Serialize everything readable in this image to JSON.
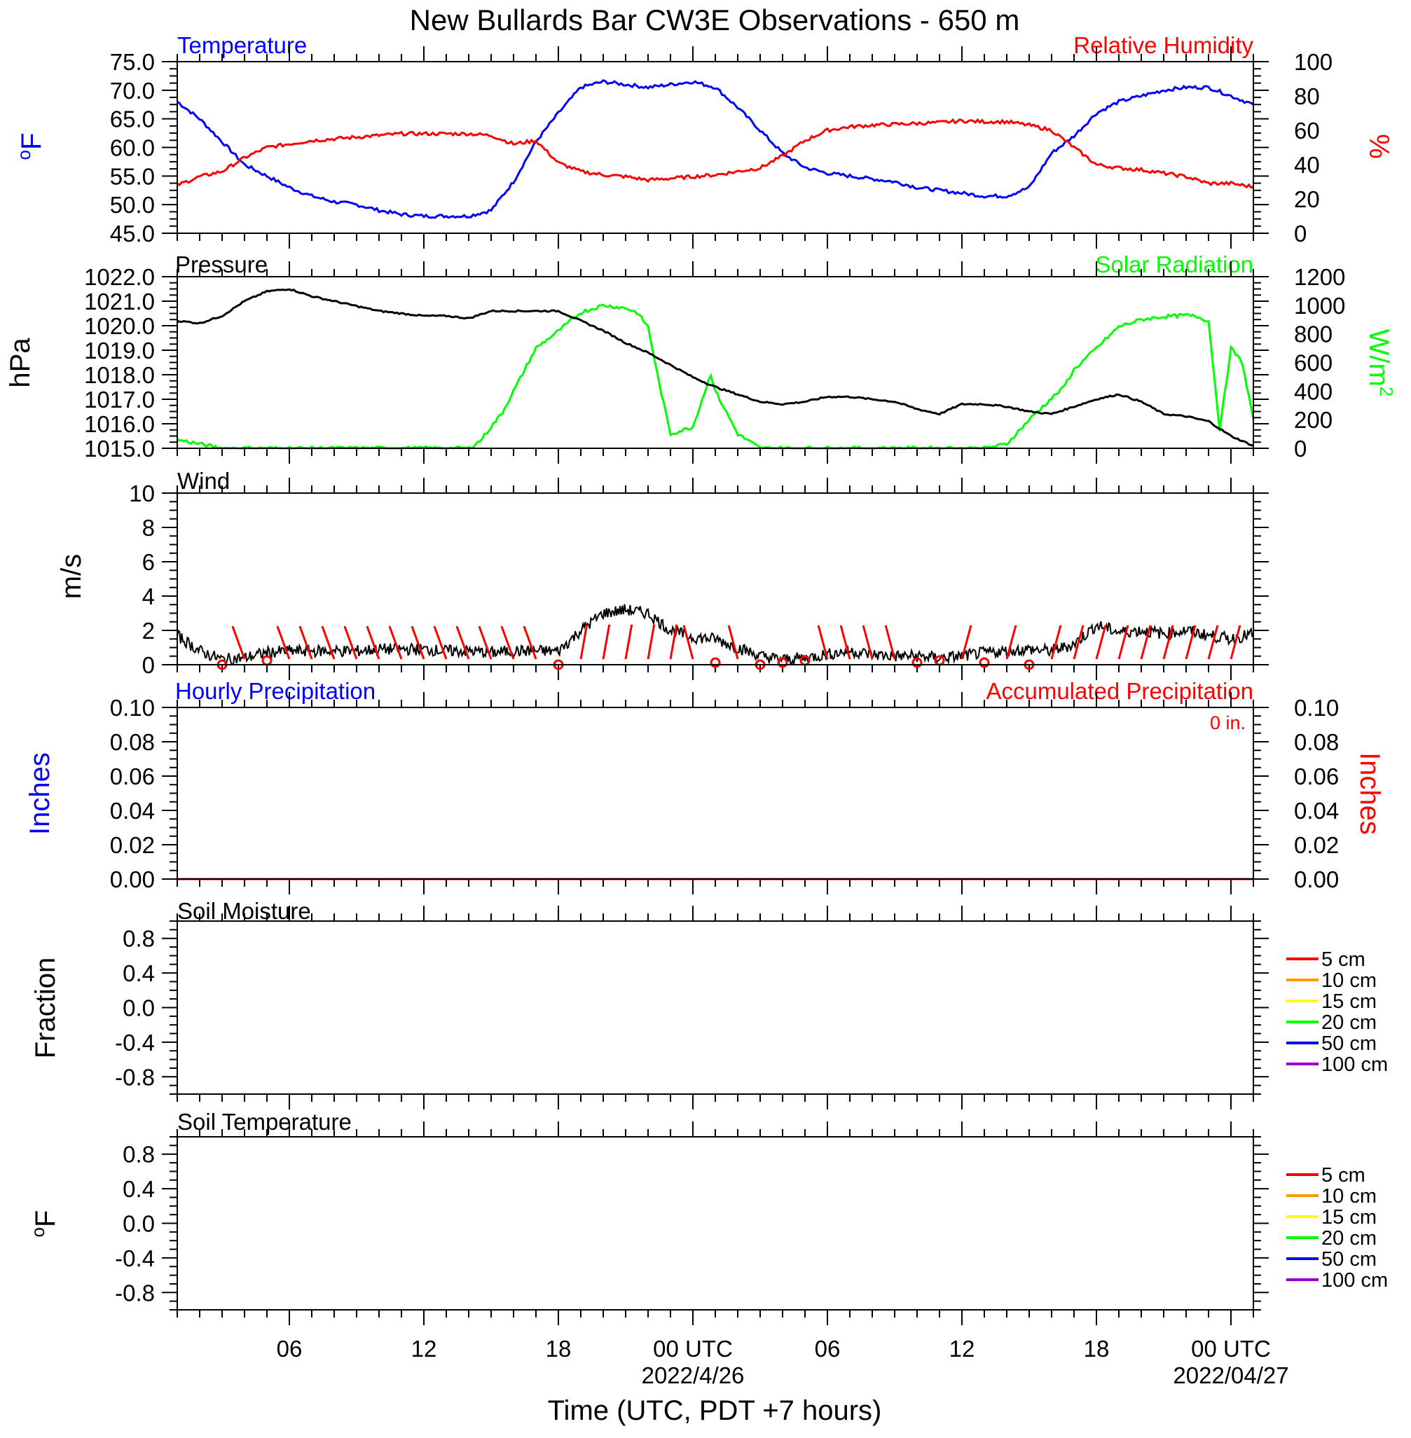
{
  "title": "New Bullards Bar CW3E Observations - 650 m",
  "xlabel": "Time (UTC, PDT +7 hours)",
  "x_ticks": [
    {
      "label": "06",
      "hour": 6,
      "date": ""
    },
    {
      "label": "12",
      "hour": 12,
      "date": ""
    },
    {
      "label": "18",
      "hour": 18,
      "date": ""
    },
    {
      "label": "00 UTC",
      "hour": 24,
      "date": "2022/4/26"
    },
    {
      "label": "06",
      "hour": 30,
      "date": ""
    },
    {
      "label": "12",
      "hour": 36,
      "date": ""
    },
    {
      "label": "18",
      "hour": 42,
      "date": ""
    },
    {
      "label": "00 UTC",
      "hour": 48,
      "date": "2022/04/27"
    }
  ],
  "x_range_hours": [
    1,
    49
  ],
  "colors": {
    "temperature": "#0000ff",
    "humidity": "#ff0000",
    "pressure": "#000000",
    "solar": "#00ff00",
    "wind": "#000000",
    "barb": "#ff0000",
    "hourly": "#0000ff",
    "accum": "#ff0000"
  },
  "panels": {
    "temp_rh": {
      "left_title": "Temperature",
      "right_title": "Relative Humidity",
      "left_unit": "oF",
      "right_unit": "%",
      "left_ticks": [
        "75.0",
        "70.0",
        "65.0",
        "60.0",
        "55.0",
        "50.0",
        "45.0"
      ],
      "right_ticks": [
        "100",
        "80",
        "60",
        "40",
        "20",
        "0"
      ]
    },
    "pres_solar": {
      "left_title": "Pressure",
      "right_title": "Solar Radiation",
      "left_unit": "hPa",
      "right_unit": "W/m2",
      "right_unit_sup": "2",
      "left_ticks": [
        "1022.0",
        "1021.0",
        "1020.0",
        "1019.0",
        "1018.0",
        "1017.0",
        "1016.0",
        "1015.0"
      ],
      "right_ticks": [
        "1200",
        "1000",
        "800",
        "600",
        "400",
        "200",
        "0"
      ]
    },
    "wind": {
      "left_title": "Wind",
      "left_unit": "m/s",
      "left_ticks": [
        "10",
        "8",
        "6",
        "4",
        "2",
        "0"
      ]
    },
    "precip": {
      "left_title": "Hourly Precipitation",
      "right_title": "Accumulated Precipitation",
      "accum_note": "0 in.",
      "left_unit": "Inches",
      "right_unit": "Inches",
      "left_ticks": [
        "0.10",
        "0.08",
        "0.06",
        "0.04",
        "0.02",
        "0.00"
      ],
      "right_ticks": [
        "0.10",
        "0.08",
        "0.06",
        "0.04",
        "0.02",
        "0.00"
      ]
    },
    "soil_moist": {
      "left_title": "Soil Moisture",
      "left_unit": "Fraction",
      "left_ticks": [
        "0.8",
        "0.4",
        "0.0",
        "-0.4",
        "-0.8"
      ]
    },
    "soil_temp": {
      "left_title": "Soil Temperature",
      "left_unit": "oF",
      "left_ticks": [
        "0.8",
        "0.4",
        "0.0",
        "-0.4",
        "-0.8"
      ]
    }
  },
  "legend": [
    {
      "label": "5 cm",
      "color": "#ff0000"
    },
    {
      "label": "10 cm",
      "color": "#ff9900"
    },
    {
      "label": "15 cm",
      "color": "#ffff00"
    },
    {
      "label": "20 cm",
      "color": "#00ff00"
    },
    {
      "label": "50 cm",
      "color": "#0000ff"
    },
    {
      "label": "100 cm",
      "color": "#9900cc"
    }
  ],
  "chart_data": [
    {
      "type": "line",
      "title": "Temperature",
      "ylabel": "oF",
      "ylim": [
        45,
        75
      ],
      "x_unit": "hour UTC from 2022/4/25 00 UTC",
      "x": [
        1,
        2,
        3,
        4,
        5,
        6,
        7,
        8,
        9,
        10,
        11,
        12,
        13,
        14,
        15,
        16,
        17,
        18,
        19,
        20,
        21,
        22,
        23,
        24,
        25,
        26,
        27,
        28,
        29,
        30,
        31,
        32,
        33,
        34,
        35,
        36,
        37,
        38,
        39,
        40,
        41,
        42,
        43,
        44,
        45,
        46,
        47,
        48,
        49
      ],
      "y": [
        68,
        65,
        61,
        57,
        55,
        53,
        51.5,
        50.5,
        50,
        49,
        48.3,
        48,
        48,
        48,
        49,
        54,
        61,
        66,
        70.5,
        71.5,
        71,
        70.5,
        71,
        71.5,
        70.5,
        67,
        63,
        59,
        56.5,
        55.5,
        55,
        54.5,
        54,
        53,
        52.5,
        52,
        51.5,
        51.5,
        53,
        59,
        62,
        66,
        68,
        69,
        70,
        70.5,
        70.5,
        69,
        67.5
      ]
    },
    {
      "type": "line",
      "title": "Relative Humidity",
      "ylabel": "%",
      "ylim": [
        0,
        100
      ],
      "x": [
        1,
        2,
        3,
        4,
        5,
        6,
        7,
        8,
        9,
        10,
        11,
        12,
        13,
        14,
        15,
        16,
        17,
        18,
        19,
        20,
        21,
        22,
        23,
        24,
        25,
        26,
        27,
        28,
        29,
        30,
        31,
        32,
        33,
        34,
        35,
        36,
        37,
        38,
        39,
        40,
        41,
        42,
        43,
        44,
        45,
        46,
        47,
        48,
        49
      ],
      "y": [
        28,
        33,
        36,
        44,
        50,
        52,
        54,
        55,
        56,
        57,
        58,
        58,
        58,
        58,
        57,
        52,
        54,
        41,
        36,
        34,
        33,
        31,
        32,
        33,
        34,
        36,
        38,
        45,
        54,
        60,
        62,
        63,
        63.5,
        64,
        64.5,
        65.5,
        65,
        65,
        63,
        60,
        50,
        40,
        38,
        37,
        35,
        33,
        29,
        29,
        27
      ]
    },
    {
      "type": "line",
      "title": "Pressure",
      "ylabel": "hPa",
      "ylim": [
        1015,
        1022
      ],
      "x": [
        1,
        2,
        3,
        4,
        5,
        6,
        7,
        8,
        9,
        10,
        11,
        12,
        13,
        14,
        15,
        16,
        17,
        18,
        19,
        20,
        21,
        22,
        23,
        24,
        25,
        26,
        27,
        28,
        29,
        30,
        31,
        32,
        33,
        34,
        35,
        36,
        37,
        38,
        39,
        40,
        41,
        42,
        43,
        44,
        45,
        46,
        47,
        48,
        49
      ],
      "y": [
        1020.2,
        1020.1,
        1020.4,
        1021,
        1021.4,
        1021.5,
        1021.2,
        1021,
        1020.8,
        1020.6,
        1020.5,
        1020.4,
        1020.4,
        1020.3,
        1020.6,
        1020.6,
        1020.6,
        1020.6,
        1020.2,
        1019.8,
        1019.3,
        1018.9,
        1018.4,
        1017.9,
        1017.5,
        1017.2,
        1016.9,
        1016.8,
        1016.9,
        1017.1,
        1017.1,
        1017,
        1016.9,
        1016.6,
        1016.4,
        1016.8,
        1016.8,
        1016.7,
        1016.5,
        1016.4,
        1016.7,
        1017,
        1017.2,
        1016.9,
        1016.4,
        1016.3,
        1016.1,
        1015.5,
        1015.1
      ]
    },
    {
      "type": "line",
      "title": "Solar Radiation",
      "ylabel": "W/m2",
      "ylim": [
        0,
        1200
      ],
      "x": [
        1,
        2,
        3,
        4,
        5,
        6,
        7,
        8,
        9,
        10,
        11,
        12,
        13,
        14,
        14.5,
        15,
        15.5,
        16,
        17,
        18,
        19,
        20,
        21,
        21.5,
        22,
        22.5,
        23,
        24,
        24.8,
        25,
        26,
        27,
        28,
        29,
        30,
        31,
        32,
        33,
        34,
        35,
        36,
        37,
        38,
        39,
        40,
        40.5,
        41,
        42,
        43,
        44,
        45,
        46,
        46.5,
        47,
        47.5,
        48,
        48.5,
        49
      ],
      "y": [
        60,
        30,
        0,
        0,
        0,
        0,
        0,
        0,
        0,
        0,
        0,
        0,
        0,
        0,
        50,
        150,
        250,
        400,
        700,
        820,
        950,
        1000,
        980,
        950,
        850,
        450,
        100,
        150,
        520,
        400,
        100,
        0,
        0,
        0,
        0,
        0,
        0,
        0,
        0,
        0,
        0,
        0,
        30,
        200,
        350,
        420,
        550,
        700,
        850,
        900,
        920,
        930,
        920,
        890,
        130,
        700,
        600,
        200
      ]
    },
    {
      "type": "line",
      "title": "Wind",
      "ylabel": "m/s",
      "ylim": [
        0,
        10
      ],
      "x": [
        1,
        2,
        3,
        4,
        5,
        6,
        7,
        8,
        9,
        10,
        11,
        12,
        13,
        14,
        15,
        16,
        17,
        18,
        19,
        20,
        21,
        22,
        23,
        24,
        25,
        26,
        27,
        28,
        29,
        30,
        31,
        32,
        33,
        34,
        35,
        36,
        37,
        38,
        39,
        40,
        41,
        42,
        43,
        44,
        45,
        46,
        47,
        48,
        49
      ],
      "y": [
        1.7,
        0.8,
        0.3,
        0.4,
        0.7,
        0.8,
        0.8,
        0.8,
        0.8,
        0.9,
        0.9,
        0.9,
        0.8,
        0.8,
        0.7,
        0.8,
        0.8,
        0.8,
        2.0,
        3.0,
        3.2,
        3.0,
        2.0,
        1.6,
        1.5,
        1.0,
        0.5,
        0.3,
        0.4,
        0.6,
        0.8,
        0.6,
        0.5,
        0.5,
        0.4,
        0.5,
        0.7,
        0.8,
        0.9,
        0.8,
        1.2,
        2.3,
        1.9,
        2.0,
        1.8,
        2.0,
        1.7,
        1.5,
        1.8
      ]
    },
    {
      "type": "line",
      "title": "Hourly Precipitation",
      "ylabel": "Inches",
      "ylim": [
        0,
        0.1
      ],
      "x": [
        1,
        49
      ],
      "y": [
        0,
        0
      ]
    },
    {
      "type": "line",
      "title": "Accumulated Precipitation",
      "ylabel": "Inches",
      "ylim": [
        0,
        0.1
      ],
      "x": [
        1,
        49
      ],
      "y": [
        0,
        0
      ]
    },
    {
      "type": "line",
      "title": "Soil Moisture",
      "ylabel": "Fraction",
      "ylim": [
        -1,
        1
      ],
      "series": []
    },
    {
      "type": "line",
      "title": "Soil Temperature",
      "ylabel": "oF",
      "ylim": [
        -1,
        1
      ],
      "series": []
    }
  ]
}
